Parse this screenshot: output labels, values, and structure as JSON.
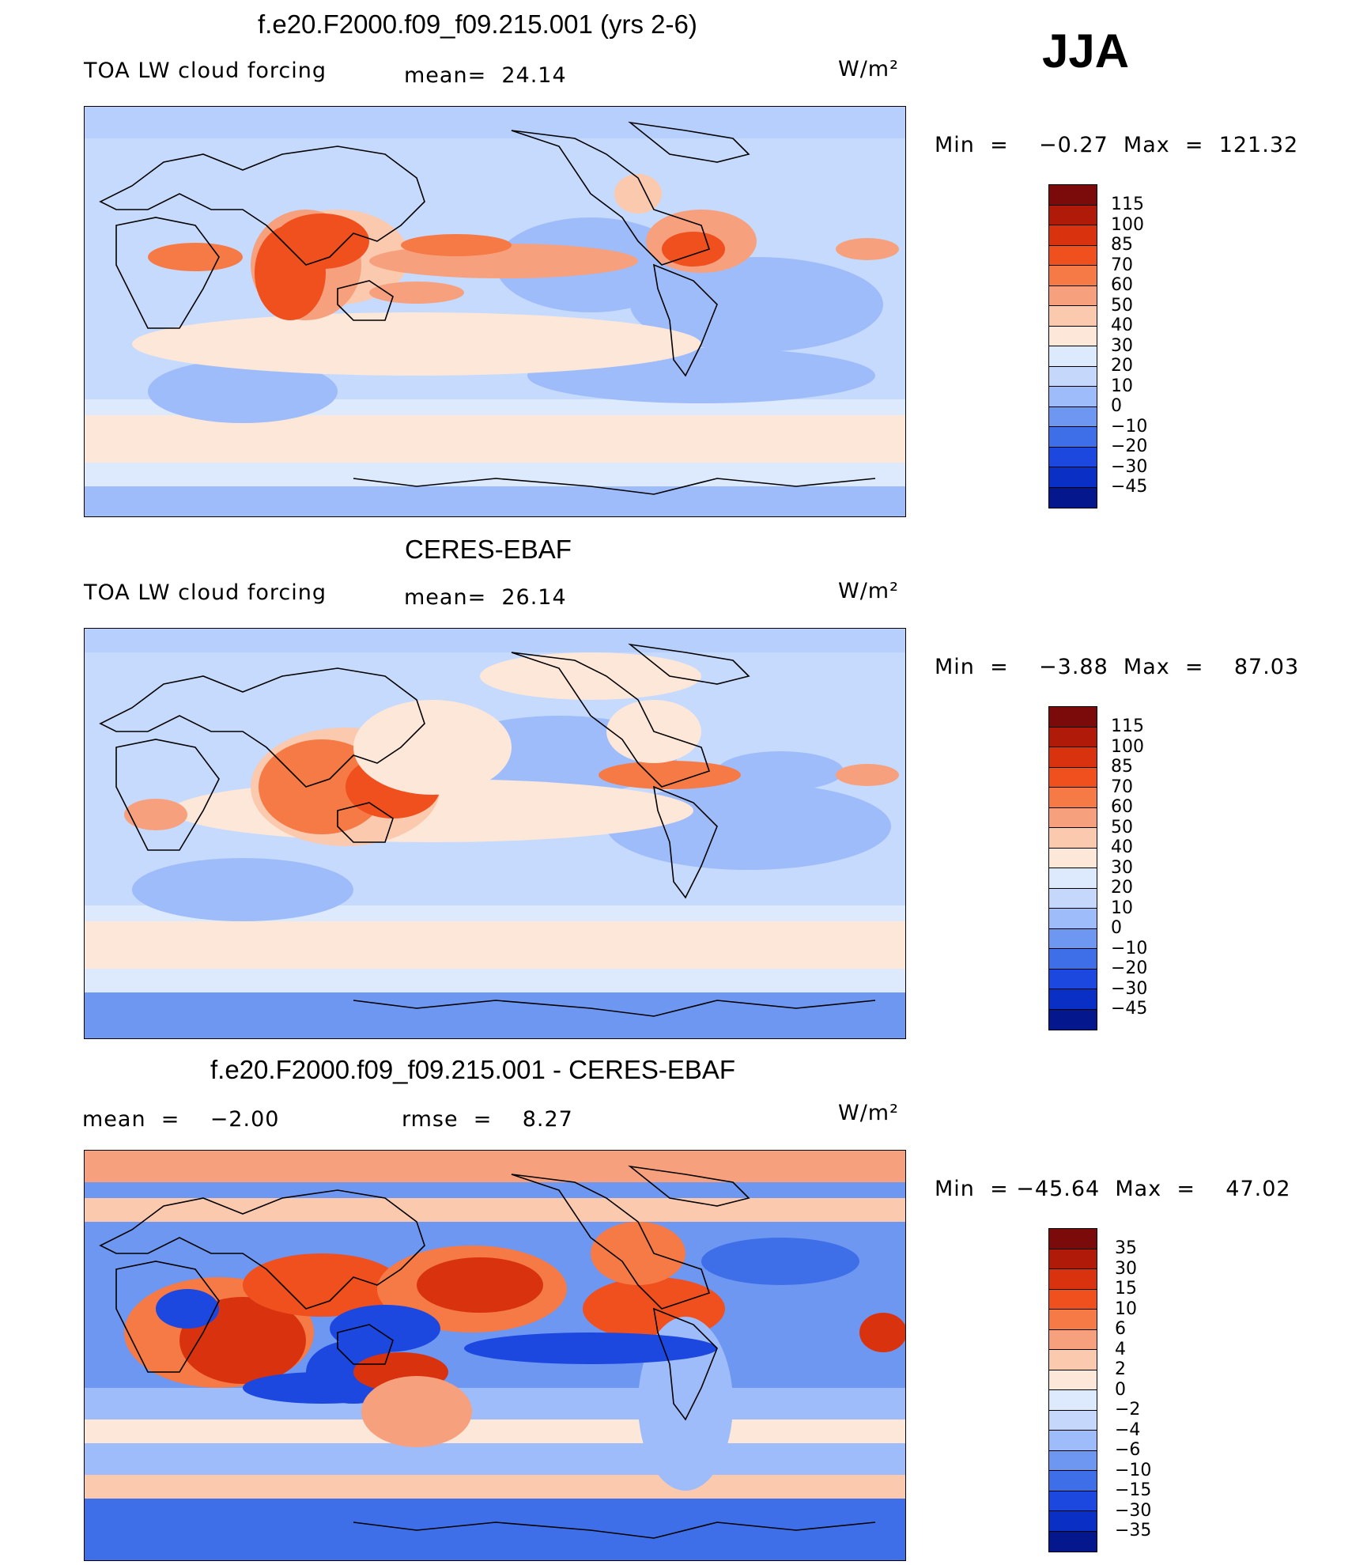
{
  "season": "JJA",
  "units": "W/m²",
  "panels": [
    {
      "title": "f.e20.F2000.f09_f09.215.001 (yrs 2-6)",
      "left_label": "TOA LW cloud forcing",
      "mid_label": "mean=  24.14",
      "range_label": "Min  =    −0.27  Max  =  121.32",
      "ticks": [
        "115",
        "100",
        "85",
        "70",
        "60",
        "50",
        "40",
        "30",
        "20",
        "10",
        "0",
        "−10",
        "−20",
        "−30",
        "−45"
      ]
    },
    {
      "title": "CERES-EBAF",
      "left_label": "TOA LW cloud forcing",
      "mid_label": "mean=  26.14",
      "range_label": "Min  =    −3.88  Max  =    87.03",
      "ticks": [
        "115",
        "100",
        "85",
        "70",
        "60",
        "50",
        "40",
        "30",
        "20",
        "10",
        "0",
        "−10",
        "−20",
        "−30",
        "−45"
      ]
    },
    {
      "title": "f.e20.F2000.f09_f09.215.001 - CERES-EBAF",
      "left_label": "mean  =    −2.00",
      "mid_label": "rmse  =    8.27",
      "range_label": "Min  = −45.64  Max  =    47.02",
      "ticks": [
        "35",
        "30",
        "15",
        "10",
        "6",
        "4",
        "2",
        "0",
        "−2",
        "−4",
        "−6",
        "−10",
        "−15",
        "−30",
        "−35"
      ]
    }
  ],
  "colors": {
    "cbar_fields": [
      "#7b0a0a",
      "#b01a08",
      "#d8330e",
      "#f04f1e",
      "#f57a45",
      "#f7a07d",
      "#fbc9ae",
      "#fde7d8",
      "#dde9fd",
      "#c5d8fc",
      "#9fbcfa",
      "#6e97f2",
      "#3f6fe8",
      "#1c48e0",
      "#0a2fc4",
      "#04178c"
    ],
    "cbar_diff": [
      "#7b0a0a",
      "#b01a08",
      "#d8330e",
      "#f04f1e",
      "#f57a45",
      "#f7a07d",
      "#fbc9ae",
      "#fde7d8",
      "#dde9fd",
      "#c5d8fc",
      "#9fbcfa",
      "#6e97f2",
      "#3f6fe8",
      "#1c48e0",
      "#0a2fc4",
      "#04178c"
    ]
  }
}
